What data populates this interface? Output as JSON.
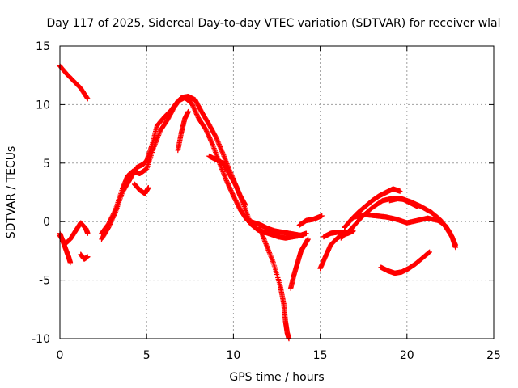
{
  "chart_data": {
    "type": "scatter",
    "title": "Day 117 of 2025, Sidereal Day-to-day VTEC variation (SDTVAR) for receiver wlal",
    "xlabel": "GPS time / hours",
    "ylabel": "SDTVAR / TECUs",
    "xlim": [
      0,
      25
    ],
    "ylim": [
      -10,
      15
    ],
    "xticks": [
      "0",
      "5",
      "10",
      "15",
      "20",
      "25"
    ],
    "yticks": [
      "-10",
      "-5",
      "0",
      "5",
      "10",
      "15"
    ],
    "grid": true,
    "marker": "+",
    "color": "#ff0000",
    "series": [
      {
        "name": "arc1",
        "x": [
          0.0,
          0.4,
          0.8,
          1.2,
          1.6
        ],
        "y": [
          13.3,
          12.6,
          12.0,
          11.4,
          10.5
        ]
      },
      {
        "name": "arc2",
        "x": [
          0.0,
          0.3,
          0.6,
          0.9,
          1.2,
          1.5,
          1.6
        ],
        "y": [
          -1.2,
          -1.9,
          -1.5,
          -0.8,
          -0.1,
          -0.6,
          -1.0
        ]
      },
      {
        "name": "arc3",
        "x": [
          0.0,
          0.2,
          0.4,
          0.5,
          0.6
        ],
        "y": [
          -1.0,
          -1.8,
          -2.6,
          -3.0,
          -3.5
        ]
      },
      {
        "name": "arc4",
        "x": [
          1.2,
          1.4,
          1.6
        ],
        "y": [
          -2.8,
          -3.2,
          -3.0
        ]
      },
      {
        "name": "arc5",
        "x": [
          2.4,
          2.8,
          3.2,
          3.6,
          3.9,
          4.2,
          4.6,
          5.0,
          5.4,
          5.8,
          6.2,
          6.6,
          7.0,
          7.4,
          7.8,
          8.2,
          8.6,
          9.0,
          9.4,
          9.8,
          10.2,
          10.6,
          11.0,
          11.4,
          11.8,
          12.2,
          12.6,
          13.0,
          13.4,
          13.8,
          14.2
        ],
        "y": [
          -1.0,
          -0.2,
          1.0,
          2.8,
          3.9,
          4.3,
          4.1,
          4.5,
          6.3,
          7.8,
          8.7,
          9.8,
          10.6,
          10.7,
          10.4,
          9.3,
          8.3,
          7.2,
          5.8,
          4.3,
          2.9,
          1.4,
          -0.2,
          -0.7,
          -0.9,
          -1.1,
          -1.3,
          -1.4,
          -1.3,
          -1.2,
          -1.0
        ]
      },
      {
        "name": "arc6",
        "x": [
          2.4,
          2.8,
          3.2,
          3.6,
          4.0,
          4.4,
          4.8,
          5.0,
          5.3,
          5.6,
          6.0,
          6.4,
          6.8,
          7.2,
          7.6,
          8.0,
          8.4,
          8.8,
          9.2,
          9.6,
          10.0,
          10.4,
          10.8,
          11.2,
          11.6,
          12.0,
          12.4,
          12.8,
          13.2,
          13.6,
          14.0
        ],
        "y": [
          -1.5,
          -0.5,
          0.8,
          2.5,
          3.5,
          4.6,
          4.9,
          5.2,
          6.5,
          8.2,
          8.9,
          9.5,
          10.3,
          10.6,
          10.1,
          8.8,
          7.9,
          6.6,
          5.0,
          3.5,
          2.2,
          1.0,
          0.1,
          -0.1,
          -0.3,
          -0.6,
          -0.8,
          -0.9,
          -1.0,
          -1.1,
          -1.2
        ]
      },
      {
        "name": "arc7",
        "x": [
          4.3,
          4.6,
          4.9,
          5.1
        ],
        "y": [
          3.2,
          2.7,
          2.4,
          2.9
        ]
      },
      {
        "name": "arc8",
        "x": [
          6.8,
          7.0,
          7.2,
          7.4
        ],
        "y": [
          6.1,
          7.6,
          8.8,
          9.4
        ]
      },
      {
        "name": "arc9",
        "x": [
          8.6,
          9.0,
          9.4,
          9.8,
          10.1,
          10.4,
          10.7
        ],
        "y": [
          5.6,
          5.3,
          5.0,
          4.0,
          3.2,
          2.2,
          1.4
        ]
      },
      {
        "name": "arc10",
        "x": [
          11.5,
          11.9,
          12.3,
          12.7,
          12.9,
          13.0,
          13.1,
          13.2
        ],
        "y": [
          -0.5,
          -2.0,
          -3.5,
          -5.5,
          -7.0,
          -8.5,
          -9.5,
          -10.0
        ]
      },
      {
        "name": "arc11",
        "x": [
          13.3,
          13.5,
          13.7,
          13.9,
          14.1,
          14.3
        ],
        "y": [
          -5.7,
          -4.5,
          -3.5,
          -2.5,
          -2.0,
          -1.5
        ]
      },
      {
        "name": "arc12",
        "x": [
          13.8,
          14.2,
          14.6,
          15.1
        ],
        "y": [
          -0.3,
          0.1,
          0.2,
          0.5
        ]
      },
      {
        "name": "arc13",
        "x": [
          15.0,
          15.3,
          15.6,
          16.0,
          16.3,
          16.6,
          16.9
        ],
        "y": [
          -4.0,
          -3.0,
          -2.0,
          -1.4,
          -1.1,
          -1.0,
          -0.8
        ]
      },
      {
        "name": "arc14",
        "x": [
          15.2,
          15.6,
          16.0,
          16.4,
          16.6
        ],
        "y": [
          -1.3,
          -1.0,
          -0.9,
          -0.9,
          -0.9
        ]
      },
      {
        "name": "arc15",
        "x": [
          16.4,
          16.8,
          17.2,
          17.6,
          18.0,
          18.4,
          18.8,
          19.2,
          19.6
        ],
        "y": [
          -0.5,
          0.2,
          0.8,
          1.3,
          1.8,
          2.2,
          2.5,
          2.8,
          2.6
        ]
      },
      {
        "name": "arc16",
        "x": [
          16.2,
          16.8,
          17.4,
          18.0,
          18.6,
          19.2,
          19.8,
          20.2,
          20.6
        ],
        "y": [
          -1.4,
          -0.6,
          0.4,
          1.2,
          1.8,
          2.0,
          1.9,
          1.6,
          1.3
        ]
      },
      {
        "name": "arc17",
        "x": [
          17.0,
          17.6,
          18.2,
          18.8,
          19.4,
          20.0,
          20.6,
          21.2,
          21.8,
          22.2,
          22.5,
          22.8
        ],
        "y": [
          0.4,
          0.6,
          0.5,
          0.4,
          0.2,
          -0.1,
          0.1,
          0.3,
          0.1,
          -0.3,
          -1.0,
          -2.0
        ]
      },
      {
        "name": "arc18",
        "x": [
          19.0,
          19.6,
          20.2,
          20.8,
          21.4,
          21.9,
          22.3,
          22.6,
          22.8
        ],
        "y": [
          1.8,
          2.0,
          1.7,
          1.3,
          0.8,
          0.2,
          -0.6,
          -1.3,
          -2.2
        ]
      },
      {
        "name": "arc19",
        "x": [
          18.5,
          18.9,
          19.3,
          19.7,
          20.1,
          20.5,
          20.9,
          21.3
        ],
        "y": [
          -3.9,
          -4.2,
          -4.4,
          -4.3,
          -4.0,
          -3.6,
          -3.1,
          -2.6
        ]
      }
    ]
  }
}
